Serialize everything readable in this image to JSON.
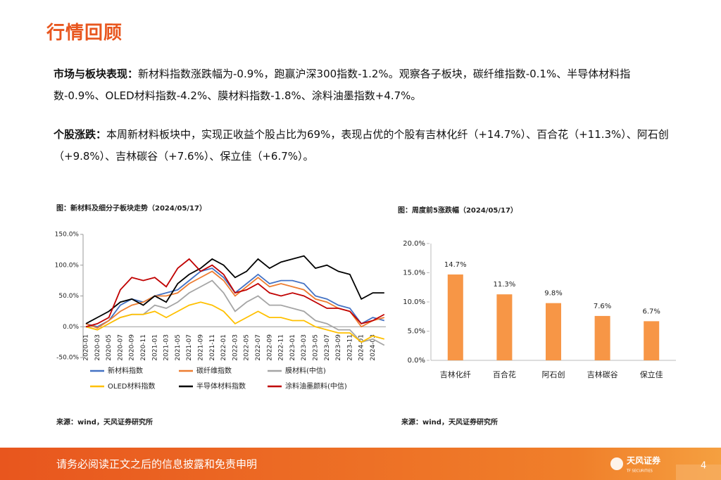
{
  "header": {
    "title": "行情回顾"
  },
  "paragraphs": [
    {
      "lead": "市场与板块表现：",
      "text": "新材料指数涨跌幅为-0.9%，跑赢沪深300指数-1.2%。观察各子板块，碳纤维指数-0.1%、半导体材料指数-0.9%、OLED材料指数-4.2%、膜材料指数-1.8%、涂料油墨指数+4.7%。"
    },
    {
      "lead": "个股涨跌：",
      "text": "本周新材料板块中，实现正收益个股占比为69%，表现占优的个股有吉林化纤（+14.7%）、百合花（+11.3%）、阿石创（+9.8%）、吉林碳谷（+7.6%）、保立佳（+6.7%）。"
    }
  ],
  "chart_data": [
    {
      "type": "line",
      "title": "图：新材料及细分子板块走势（2024/05/17）",
      "source": "来源：wind，天风证券研究所",
      "categories": [
        "2020-01",
        "2020-03",
        "2020-05",
        "2020-07",
        "2020-09",
        "2020-11",
        "2021-01",
        "2021-03",
        "2021-05",
        "2021-07",
        "2021-09",
        "2021-11",
        "2022-01",
        "2022-03",
        "2022-05",
        "2022-07",
        "2022-09",
        "2022-11",
        "2023-01",
        "2023-03",
        "2023-05",
        "2023-07",
        "2023-09",
        "2023-11",
        "2024-01",
        "2024-03",
        null
      ],
      "ylim": [
        -50,
        150
      ],
      "yticks": [
        {
          "value": -50,
          "label": "-50.0%"
        },
        {
          "value": 0,
          "label": "0.0%"
        },
        {
          "value": 50,
          "label": "50.0%"
        },
        {
          "value": 100,
          "label": "100.0%"
        },
        {
          "value": 150,
          "label": "150.0%"
        }
      ],
      "series": [
        {
          "name": "新材料指数",
          "color": "#4472c4",
          "values": [
            5,
            0,
            10,
            35,
            45,
            40,
            50,
            55,
            60,
            75,
            90,
            95,
            80,
            55,
            70,
            85,
            70,
            75,
            75,
            70,
            50,
            45,
            35,
            30,
            5,
            15,
            10
          ]
        },
        {
          "name": "碳纤维指数",
          "color": "#ed7d31",
          "values": [
            5,
            -2,
            10,
            25,
            35,
            40,
            50,
            50,
            55,
            70,
            80,
            90,
            75,
            50,
            65,
            80,
            65,
            70,
            65,
            60,
            45,
            40,
            30,
            25,
            0,
            10,
            15
          ]
        },
        {
          "name": "膜材料(中信)",
          "color": "#a5a5a5",
          "values": [
            0,
            -5,
            5,
            15,
            20,
            20,
            35,
            30,
            40,
            55,
            65,
            75,
            55,
            25,
            40,
            50,
            35,
            35,
            30,
            25,
            10,
            5,
            -5,
            -5,
            -25,
            -20,
            -30
          ]
        },
        {
          "name": "OLED材料指数",
          "color": "#ffc000",
          "values": [
            0,
            -5,
            5,
            15,
            20,
            20,
            25,
            15,
            25,
            35,
            40,
            35,
            25,
            5,
            15,
            25,
            15,
            15,
            10,
            10,
            0,
            -5,
            -10,
            -10,
            -25,
            -15,
            -20
          ]
        },
        {
          "name": "半导体材料指数",
          "color": "#000000",
          "values": [
            5,
            15,
            25,
            40,
            45,
            35,
            50,
            40,
            70,
            85,
            95,
            110,
            100,
            80,
            90,
            110,
            95,
            105,
            110,
            115,
            95,
            100,
            90,
            85,
            45,
            55,
            55
          ]
        },
        {
          "name": "涂料油墨颜料(中信)",
          "color": "#c00000",
          "values": [
            0,
            5,
            15,
            60,
            80,
            75,
            80,
            65,
            95,
            110,
            90,
            100,
            85,
            55,
            60,
            70,
            55,
            50,
            55,
            50,
            40,
            30,
            30,
            25,
            5,
            10,
            20
          ]
        }
      ]
    },
    {
      "type": "bar",
      "title": "图：周度前5涨跌幅（2024/05/17）",
      "source": "来源：wind，天风证券研究所",
      "categories": [
        "吉林化纤",
        "百合花",
        "阿石创",
        "吉林碳谷",
        "保立佳"
      ],
      "values": [
        14.7,
        11.3,
        9.8,
        7.6,
        6.7
      ],
      "value_labels": [
        "14.7%",
        "11.3%",
        "9.8%",
        "7.6%",
        "6.7%"
      ],
      "color": "#f79646",
      "ylim": [
        0,
        20
      ],
      "yticks": [
        {
          "value": 0,
          "label": "0.0%"
        },
        {
          "value": 5,
          "label": "5.0%"
        },
        {
          "value": 10,
          "label": "10.0%"
        },
        {
          "value": 15,
          "label": "15.0%"
        },
        {
          "value": 20,
          "label": "20.0%"
        }
      ]
    }
  ],
  "footer": {
    "disclaimer": "请务必阅读正文之后的信息披露和免责申明",
    "logo": "天风证券",
    "logo_sub": "TF SECURITIES",
    "page": "4"
  }
}
